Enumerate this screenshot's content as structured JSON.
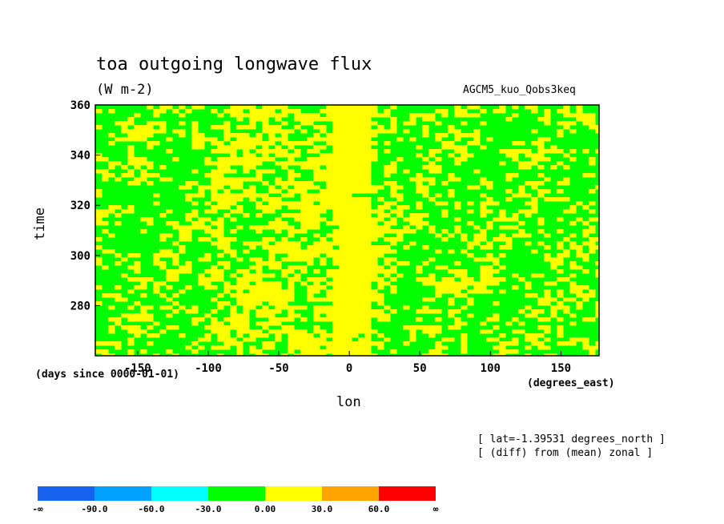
{
  "header": {
    "title": "toa outgoing longwave flux",
    "units": "(W m-2)",
    "dataset": "AGCM5_kuo_Qobs3keq"
  },
  "axes": {
    "x_title": "lon",
    "x_units": "(degrees_east)",
    "y_title": "time",
    "y_units": "(days since 0000-01-01)"
  },
  "notes": {
    "line1": "[ lat=-1.39531 degrees_north ]",
    "line2": "[ (diff) from (mean) zonal ]"
  },
  "colorbar": {
    "colors": [
      "#1464f0",
      "#00a0ff",
      "#00ffff",
      "#00ff00",
      "#ffff00",
      "#ffa500",
      "#ff0000"
    ],
    "labels": [
      "-∞",
      "-90.0",
      "-60.0",
      "-30.0",
      "0.00",
      "30.0",
      "60.0",
      "∞"
    ]
  },
  "chart_data": {
    "type": "heatmap",
    "title": "toa outgoing longwave flux",
    "subtitle": "(W m-2)",
    "xlabel": "lon",
    "ylabel": "time",
    "xlim": [
      -180,
      177
    ],
    "ylim": [
      260,
      360
    ],
    "x_ticks": [
      -150,
      -100,
      -50,
      0,
      50,
      100,
      150
    ],
    "x_tick_labels": [
      "-150",
      "-100",
      "-50",
      "0",
      "50",
      "100",
      "150"
    ],
    "y_ticks": [
      280,
      300,
      320,
      340,
      360
    ],
    "y_tick_labels": [
      "280",
      "300",
      "320",
      "340",
      "360"
    ],
    "levels": [
      -90,
      -60,
      -30,
      0,
      30,
      60
    ],
    "dominant_classes": [
      "-30.0 to 0.00 (green)",
      "0.00 to 30.0 (yellow)"
    ],
    "pattern": "mottled green/yellow field; solid yellow band from about -15 to 15 degrees_east across all times; more yellow from -100 to -20, more green east of 20",
    "grid": false
  }
}
